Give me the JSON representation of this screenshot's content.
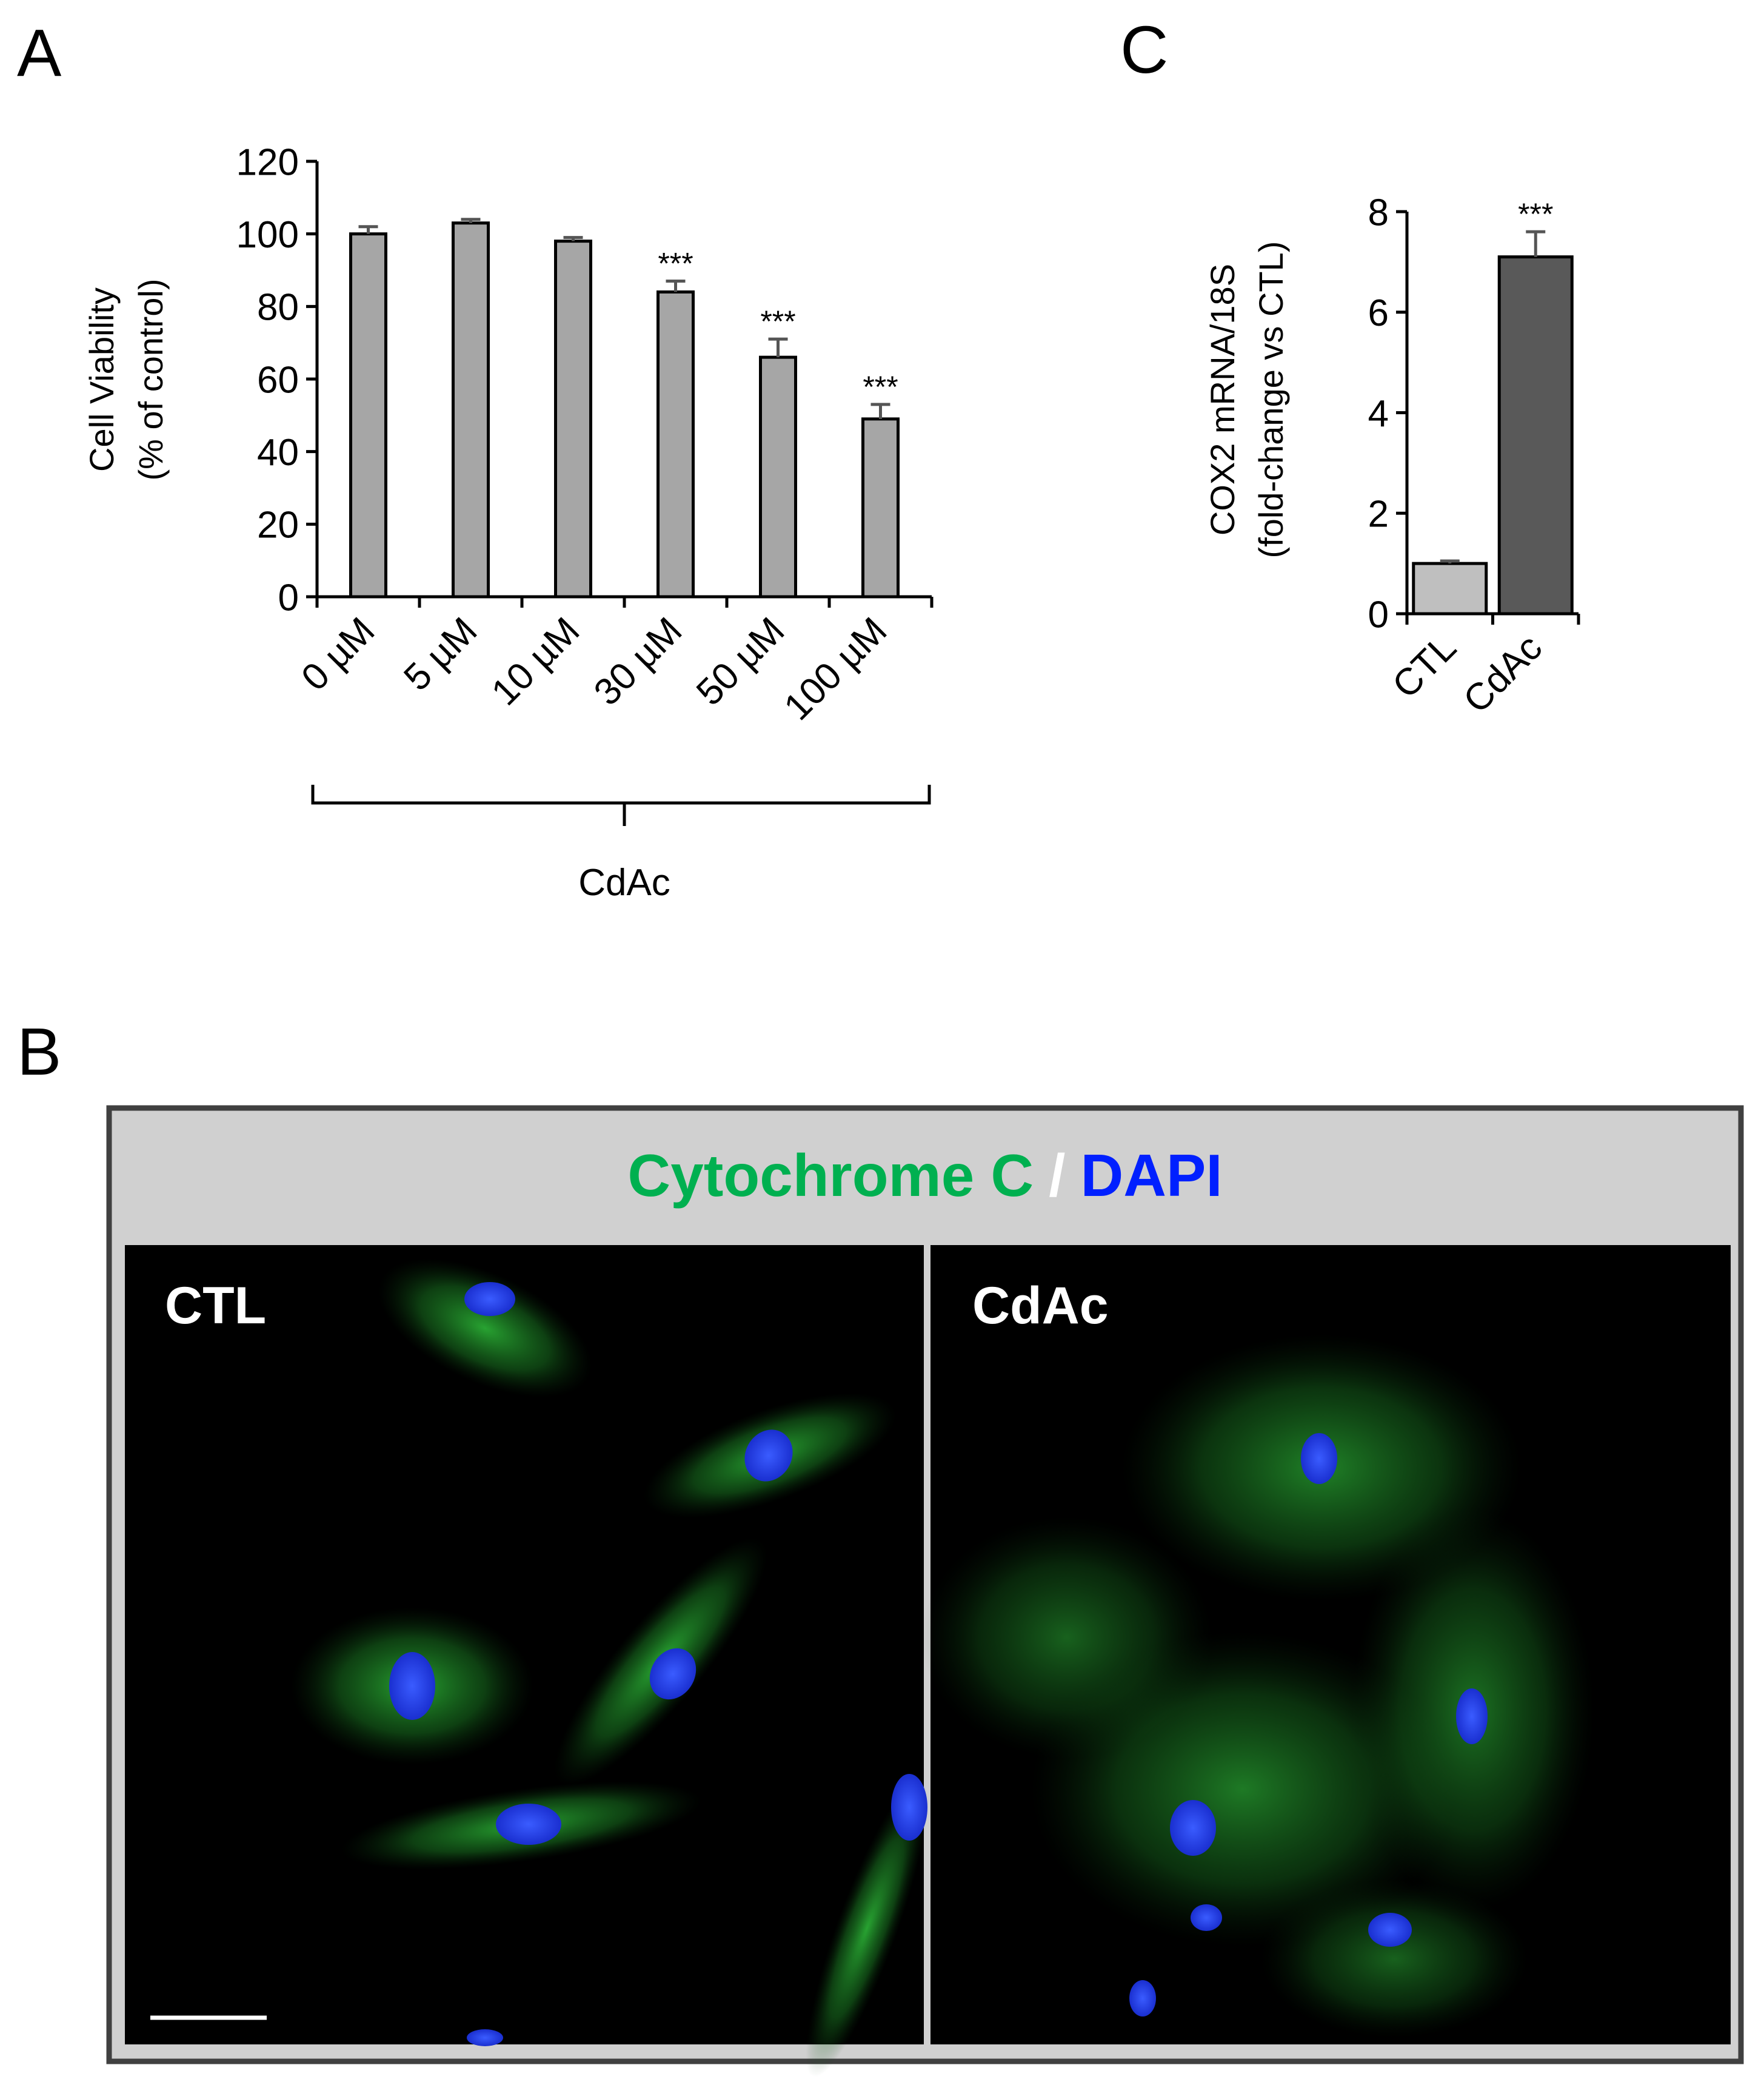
{
  "panels": {
    "a": "A",
    "b": "B",
    "c": "C"
  },
  "chart_data": [
    {
      "type": "bar",
      "categories": [
        "0 µM",
        "5 µM",
        "10 µM",
        "30 µM",
        "50 µM",
        "100 µM"
      ],
      "values": [
        100,
        103,
        98,
        84,
        66,
        49
      ],
      "errors": [
        2,
        1,
        1,
        3,
        5,
        4
      ],
      "significance": [
        null,
        null,
        null,
        "***",
        "***",
        "***"
      ],
      "color": "#a6a6a6",
      "ylabel": [
        "Cell Viability",
        "(% of control)"
      ],
      "group_label": "CdAc",
      "ylim": [
        0,
        120
      ],
      "yticks": [
        0,
        20,
        40,
        60,
        80,
        100,
        120
      ],
      "grid": false
    },
    {
      "type": "bar",
      "categories": [
        "CTL",
        "CdAc"
      ],
      "values": [
        1.0,
        7.1
      ],
      "errors": [
        0.05,
        0.5
      ],
      "significance": [
        null,
        "***"
      ],
      "colors": [
        "#bfbfbf",
        "#595959"
      ],
      "ylabel": [
        "COX2 mRNA/18S",
        "(fold-change vs CTL)"
      ],
      "ylim": [
        0,
        8
      ],
      "yticks": [
        0,
        2,
        4,
        6,
        8
      ],
      "grid": false
    }
  ],
  "micrograph": {
    "title_green": "Cytochrome C",
    "separator": "/",
    "title_blue": "DAPI",
    "left_label": "CTL",
    "right_label": "CdAc"
  }
}
